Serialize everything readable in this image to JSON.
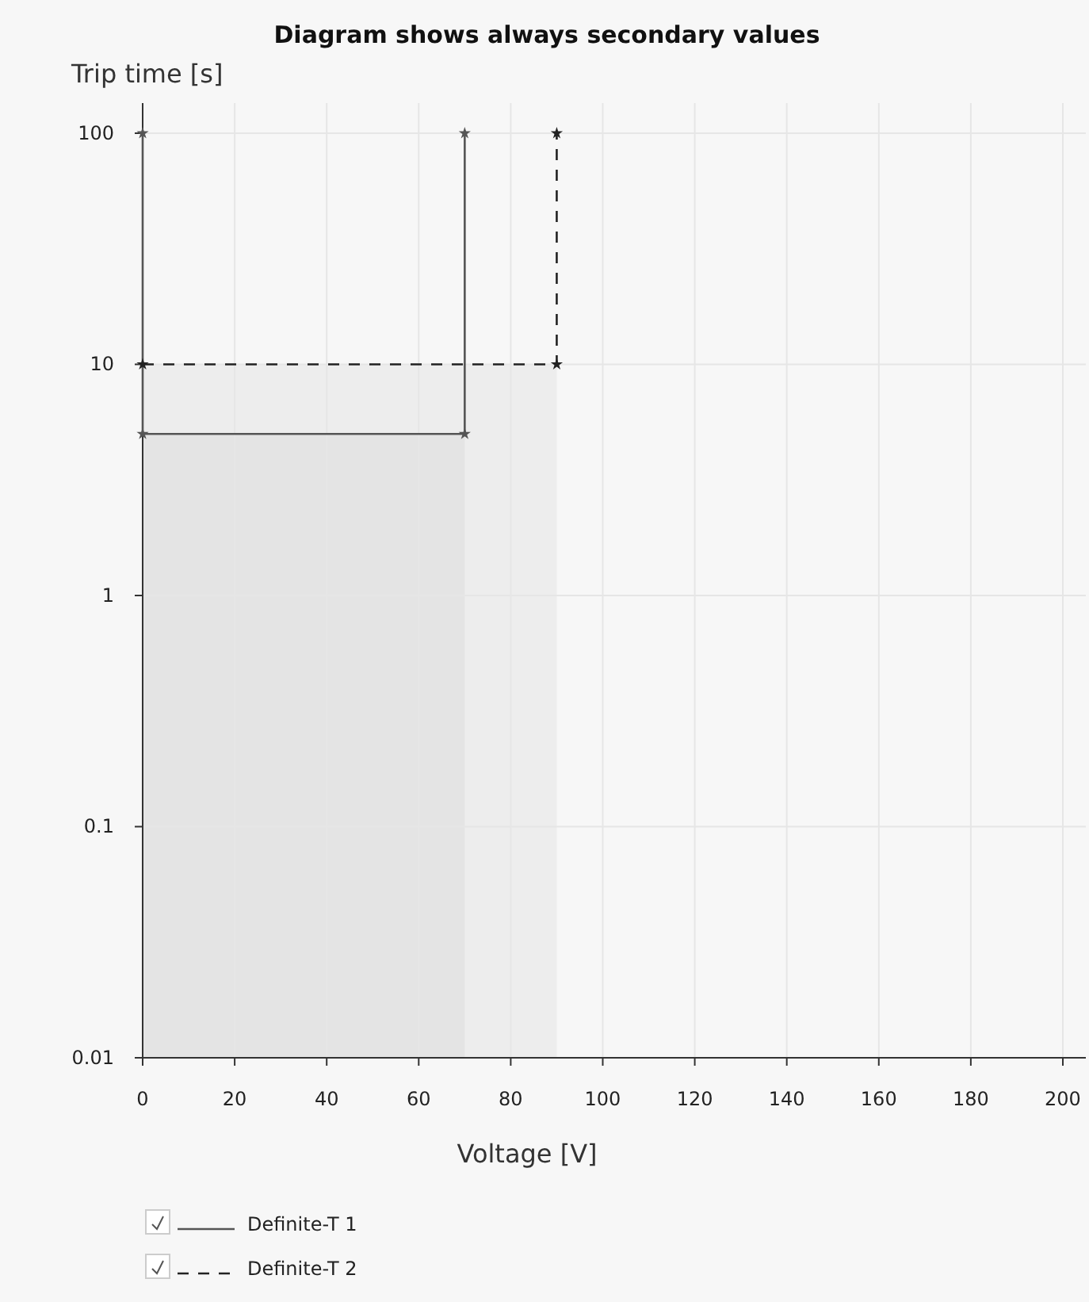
{
  "chart_data": {
    "type": "line",
    "title": "Diagram shows always secondary values",
    "xlabel": "Voltage [V]",
    "ylabel": "Trip time [s]",
    "xlim": [
      0,
      205
    ],
    "xticks": [
      0,
      20,
      40,
      60,
      80,
      100,
      120,
      140,
      160,
      180,
      200
    ],
    "ylim": [
      0.01,
      135
    ],
    "yticks": [
      0.01,
      0.1,
      1,
      10,
      100
    ],
    "log": "y",
    "grid": true,
    "legend": "bottom left",
    "series": [
      {
        "type": "area",
        "color": "#ededed",
        "x": [
          0,
          90
        ],
        "values": [
          10,
          10
        ]
      },
      {
        "type": "area",
        "color": "#e4e4e4",
        "x": [
          0,
          70
        ],
        "values": [
          5,
          5
        ]
      },
      {
        "name": "Definite-T 1",
        "color": "#555555",
        "line_style": "solid",
        "marker": "star",
        "x": [
          0,
          0,
          70,
          70
        ],
        "values": [
          100,
          5,
          5,
          100
        ]
      },
      {
        "name": "Definite-T 2",
        "color": "#222222",
        "line_style": "dashed",
        "marker": "star",
        "x": [
          0,
          90,
          90
        ],
        "values": [
          10,
          10,
          100
        ]
      }
    ]
  }
}
